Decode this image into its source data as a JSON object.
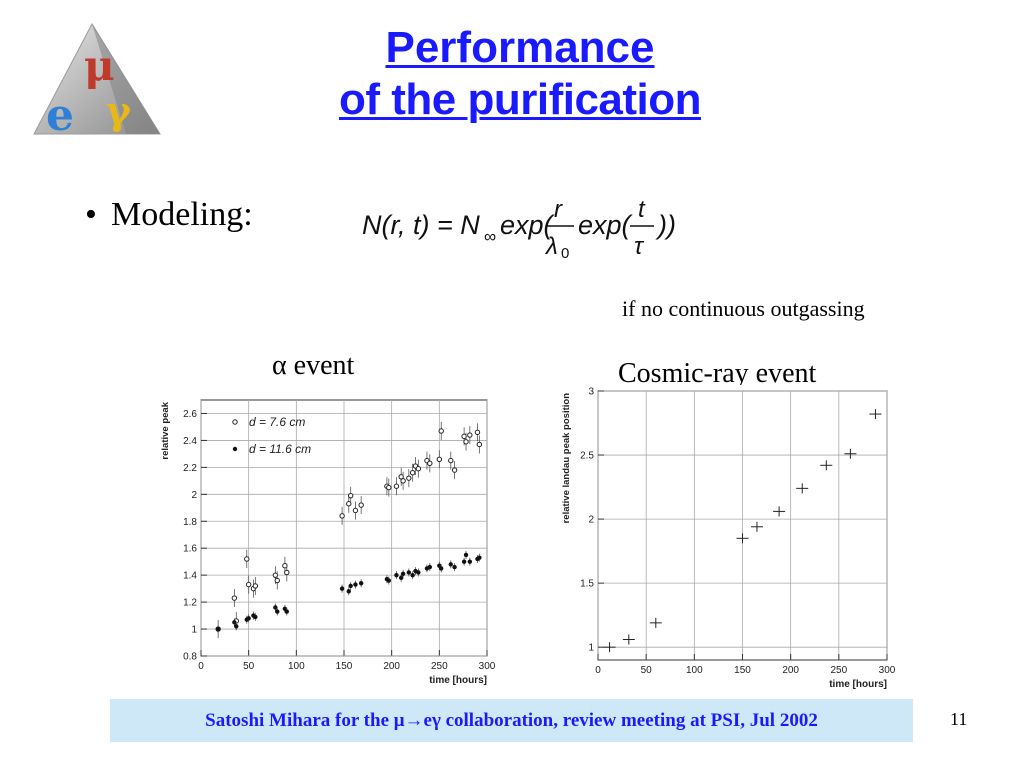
{
  "logo": {
    "letters": [
      "μ",
      "e",
      "γ"
    ]
  },
  "title": {
    "line1": "Performance",
    "line2": "of the purification"
  },
  "bullet": {
    "text": "Modeling:"
  },
  "formula": {
    "text": "N(r,t) = N∞exp(r/λ0 exp(t/τ))"
  },
  "note": "if no continuous outgassing",
  "footer": {
    "text": "Satoshi Mihara for the μ→eγ collaboration, review meeting at PSI, Jul 2002"
  },
  "page_number": "11",
  "chart_data": [
    {
      "type": "scatter",
      "title": "α event",
      "xlabel": "time [hours]",
      "ylabel": "relative peak",
      "xlim": [
        0,
        300
      ],
      "ylim": [
        0.8,
        2.7
      ],
      "xticks": [
        0,
        50,
        100,
        150,
        200,
        250,
        300
      ],
      "yticks": [
        0.8,
        1,
        1.2,
        1.4,
        1.6,
        1.8,
        2,
        2.2,
        2.4,
        2.6
      ],
      "grid": true,
      "legend_position": "top-left",
      "series": [
        {
          "name": "d = 7.6 cm",
          "marker": "open-circle",
          "x": [
            18,
            35,
            37,
            48,
            50,
            55,
            57,
            78,
            80,
            88,
            90,
            148,
            155,
            157,
            162,
            168,
            195,
            197,
            205,
            210,
            212,
            218,
            222,
            225,
            228,
            237,
            240,
            250,
            252,
            262,
            266,
            276,
            278,
            282,
            290,
            292
          ],
          "y": [
            1.0,
            1.23,
            1.06,
            1.52,
            1.33,
            1.3,
            1.32,
            1.4,
            1.36,
            1.47,
            1.42,
            1.84,
            1.93,
            1.99,
            1.88,
            1.92,
            2.06,
            2.05,
            2.06,
            2.13,
            2.1,
            2.12,
            2.16,
            2.21,
            2.19,
            2.25,
            2.23,
            2.26,
            2.47,
            2.25,
            2.18,
            2.43,
            2.39,
            2.44,
            2.46,
            2.37
          ]
        },
        {
          "name": "d = 11.6 cm",
          "marker": "filled-circle",
          "x": [
            18,
            35,
            37,
            48,
            50,
            55,
            57,
            78,
            80,
            88,
            90,
            148,
            155,
            157,
            162,
            168,
            195,
            197,
            205,
            210,
            212,
            218,
            222,
            225,
            228,
            237,
            240,
            250,
            252,
            262,
            266,
            276,
            278,
            282,
            290,
            292
          ],
          "y": [
            1.0,
            1.05,
            1.02,
            1.07,
            1.08,
            1.1,
            1.09,
            1.16,
            1.13,
            1.15,
            1.13,
            1.3,
            1.28,
            1.32,
            1.33,
            1.34,
            1.37,
            1.36,
            1.4,
            1.38,
            1.41,
            1.42,
            1.4,
            1.43,
            1.42,
            1.45,
            1.46,
            1.47,
            1.45,
            1.48,
            1.46,
            1.5,
            1.55,
            1.5,
            1.52,
            1.53
          ]
        }
      ]
    },
    {
      "type": "scatter",
      "title": "Cosmic-ray event",
      "xlabel": "time [hours]",
      "ylabel": "relative landau peak position",
      "xlim": [
        0,
        300
      ],
      "ylim": [
        0.9,
        3.0
      ],
      "xticks": [
        0,
        50,
        100,
        150,
        200,
        250,
        300
      ],
      "yticks": [
        1,
        1.5,
        2,
        2.5,
        3
      ],
      "grid": true,
      "series": [
        {
          "name": "",
          "marker": "cross-errorbar",
          "x": [
            12,
            32,
            60,
            150,
            165,
            188,
            212,
            237,
            262,
            288
          ],
          "y": [
            1.0,
            1.06,
            1.19,
            1.85,
            1.94,
            2.06,
            2.24,
            2.42,
            2.51,
            2.82
          ]
        }
      ]
    }
  ]
}
